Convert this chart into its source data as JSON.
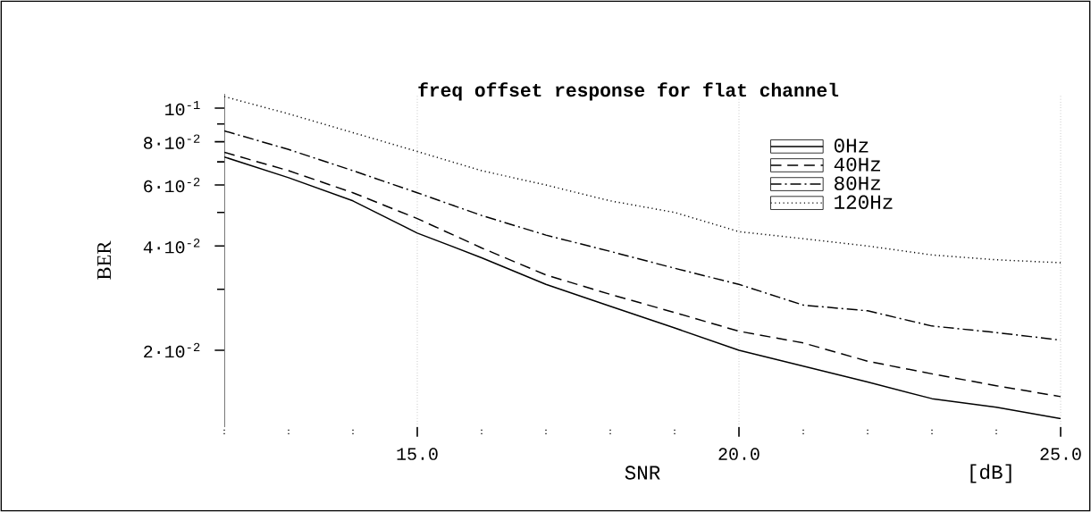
{
  "chart_data": {
    "type": "line",
    "title": "freq offset response for flat channel",
    "xlabel": "SNR",
    "ylabel": "BER",
    "annotations": [
      "[dB]"
    ],
    "x": [
      12,
      13,
      14,
      15,
      16,
      17,
      18,
      19,
      20,
      21,
      22,
      23,
      24,
      25
    ],
    "series": [
      {
        "name": "0Hz",
        "color": "#000000",
        "line_style": "solid",
        "values": [
          0.0723,
          0.063,
          0.054,
          0.0436,
          0.037,
          0.031,
          0.0268,
          0.0232,
          0.02,
          0.018,
          0.0162,
          0.0145,
          0.0137,
          0.0127
        ]
      },
      {
        "name": "40Hz",
        "color": "#000000",
        "line_style": "dashed",
        "values": [
          0.0746,
          0.066,
          0.057,
          0.048,
          0.0395,
          0.033,
          0.029,
          0.0257,
          0.0227,
          0.021,
          0.0186,
          0.0171,
          0.0158,
          0.0147
        ]
      },
      {
        "name": "80Hz",
        "color": "#000000",
        "line_style": "dashdot",
        "values": [
          0.086,
          0.076,
          0.066,
          0.057,
          0.049,
          0.043,
          0.0386,
          0.0345,
          0.031,
          0.027,
          0.026,
          0.0235,
          0.0225,
          0.0214
        ]
      },
      {
        "name": "120Hz",
        "color": "#000000",
        "line_style": "dotted",
        "values": [
          0.108,
          0.0963,
          0.085,
          0.075,
          0.066,
          0.06,
          0.054,
          0.05,
          0.044,
          0.042,
          0.04,
          0.0377,
          0.0365,
          0.0358
        ]
      }
    ],
    "log": "y",
    "xlim": [
      12,
      25
    ],
    "ylim": [
      0.012,
      0.11
    ],
    "xticks": [
      {
        "value": 12,
        "label": null
      },
      {
        "value": 13,
        "label": null
      },
      {
        "value": 14,
        "label": null
      },
      {
        "value": 15,
        "label": "15.0"
      },
      {
        "value": 16,
        "label": null
      },
      {
        "value": 17,
        "label": null
      },
      {
        "value": 18,
        "label": null
      },
      {
        "value": 19,
        "label": null
      },
      {
        "value": 20,
        "label": "20.0"
      },
      {
        "value": 21,
        "label": null
      },
      {
        "value": 22,
        "label": null
      },
      {
        "value": 23,
        "label": null
      },
      {
        "value": 24,
        "label": null
      },
      {
        "value": 25,
        "label": "25.0"
      }
    ],
    "yticks": [
      {
        "value": 0.02,
        "label": "2·10$^{-2}$"
      },
      {
        "value": 0.03,
        "label": null
      },
      {
        "value": 0.04,
        "label": "4·10$^{-2}$"
      },
      {
        "value": 0.05,
        "label": null
      },
      {
        "value": 0.06,
        "label": "6·10$^{-2}$"
      },
      {
        "value": 0.07,
        "label": null
      },
      {
        "value": 0.08,
        "label": "8·10$^{-2}$"
      },
      {
        "value": 0.09,
        "label": null
      },
      {
        "value": 0.1,
        "label": "10$^{-1}$"
      }
    ],
    "grid": "x",
    "legend": "top right",
    "marker": "none"
  }
}
